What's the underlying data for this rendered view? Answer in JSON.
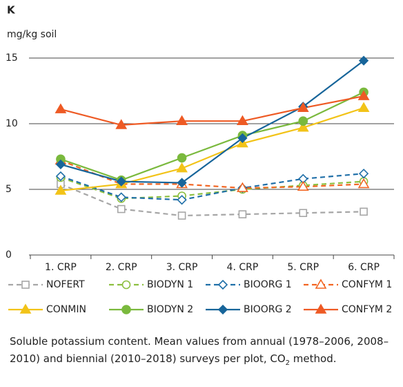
{
  "chart_data": {
    "type": "line",
    "title": "K",
    "y_label": "mg/kg soil",
    "categories": [
      "1. CRP",
      "2. CRP",
      "3. CRP",
      "4. CRP",
      "5. CRP",
      "6. CRP"
    ],
    "ylim": [
      0,
      15
    ],
    "yticks": [
      0,
      5,
      10,
      15
    ],
    "grid": true,
    "series": [
      {
        "name": "NOFERT",
        "color": "#a6a6a6",
        "dashed": true,
        "marker": "square",
        "filled": false,
        "values": [
          5.4,
          3.5,
          3.0,
          3.1,
          3.2,
          3.3
        ]
      },
      {
        "name": "BIODYN 1",
        "color": "#8cbf3f",
        "dashed": true,
        "marker": "circle",
        "filled": false,
        "values": [
          5.9,
          4.3,
          4.5,
          5.0,
          5.3,
          5.6
        ]
      },
      {
        "name": "BIOORG 1",
        "color": "#1f6fa8",
        "dashed": true,
        "marker": "diamond",
        "filled": false,
        "values": [
          6.0,
          4.4,
          4.2,
          5.1,
          5.8,
          6.2
        ]
      },
      {
        "name": "CONFYM 1",
        "color": "#f26522",
        "dashed": true,
        "marker": "triangle",
        "filled": false,
        "values": [
          7.2,
          5.4,
          5.4,
          5.1,
          5.2,
          5.4
        ]
      },
      {
        "name": "CONMIN",
        "color": "#f2c318",
        "dashed": false,
        "marker": "triangle",
        "filled": true,
        "values": [
          4.9,
          5.4,
          6.6,
          8.5,
          9.7,
          11.2
        ]
      },
      {
        "name": "BIODYN 2",
        "color": "#7ab93d",
        "dashed": false,
        "marker": "circle",
        "filled": true,
        "values": [
          7.3,
          5.7,
          7.4,
          9.1,
          10.2,
          12.4
        ]
      },
      {
        "name": "BIOORG 2",
        "color": "#17659a",
        "dashed": false,
        "marker": "diamond",
        "filled": true,
        "values": [
          6.9,
          5.6,
          5.5,
          8.9,
          11.3,
          14.8
        ]
      },
      {
        "name": "CONFYM 2",
        "color": "#ee5a24",
        "dashed": false,
        "marker": "triangle",
        "filled": true,
        "values": [
          11.1,
          9.9,
          10.2,
          10.2,
          11.2,
          12.1
        ]
      }
    ],
    "caption": [
      "Soluble potassium content. Mean values from annual (1978–2006, 2008–2010) and biennial (2010–2018) surveys per plot, CO",
      "2",
      " method."
    ]
  }
}
